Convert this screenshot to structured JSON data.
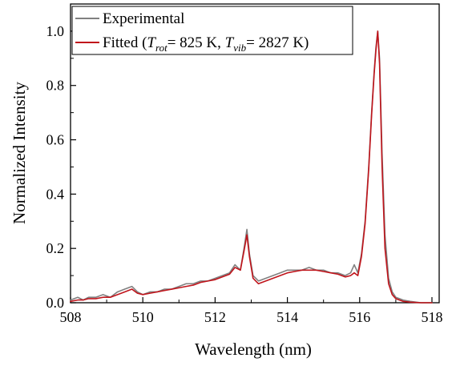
{
  "chart_data": {
    "type": "line",
    "xlabel": "Wavelength (nm)",
    "ylabel": "Normalized Intensity",
    "xlim": [
      508,
      518.2
    ],
    "ylim": [
      0,
      1.1
    ],
    "x_ticks": [
      "508",
      "510",
      "512",
      "514",
      "516",
      "518"
    ],
    "y_ticks": [
      "0.0",
      "0.2",
      "0.4",
      "0.6",
      "0.8",
      "1.0"
    ],
    "legend_position": "top-left",
    "grid": false,
    "legend": {
      "experimental": "Experimental",
      "fitted_prefix": "Fitted (",
      "T_symbol": "T",
      "rot_sub": "rot",
      "rot_value": "= 825 K, ",
      "vib_sub": "vib",
      "vib_value": "= 2827 K)"
    },
    "series": [
      {
        "name": "Experimental",
        "color": "#808080",
        "x": [
          508.0,
          508.2,
          508.35,
          508.5,
          508.7,
          508.9,
          509.1,
          509.3,
          509.5,
          509.7,
          509.85,
          510.0,
          510.2,
          510.4,
          510.6,
          510.8,
          511.0,
          511.2,
          511.4,
          511.6,
          511.8,
          512.0,
          512.2,
          512.4,
          512.55,
          512.7,
          512.8,
          512.88,
          512.95,
          513.05,
          513.2,
          513.4,
          513.6,
          513.8,
          514.0,
          514.2,
          514.4,
          514.6,
          514.8,
          515.0,
          515.2,
          515.4,
          515.6,
          515.75,
          515.85,
          515.95,
          516.05,
          516.15,
          516.25,
          516.33,
          516.4,
          516.45,
          516.5,
          516.55,
          516.62,
          516.7,
          516.8,
          516.9,
          517.0,
          517.1,
          517.2,
          517.4,
          517.7,
          518.0
        ],
        "values": [
          0.01,
          0.02,
          0.01,
          0.02,
          0.02,
          0.03,
          0.02,
          0.04,
          0.05,
          0.06,
          0.04,
          0.03,
          0.04,
          0.04,
          0.05,
          0.05,
          0.06,
          0.07,
          0.07,
          0.08,
          0.08,
          0.09,
          0.1,
          0.11,
          0.14,
          0.12,
          0.2,
          0.27,
          0.18,
          0.1,
          0.08,
          0.09,
          0.1,
          0.11,
          0.12,
          0.12,
          0.12,
          0.13,
          0.12,
          0.12,
          0.11,
          0.11,
          0.1,
          0.11,
          0.14,
          0.11,
          0.18,
          0.3,
          0.5,
          0.7,
          0.85,
          0.94,
          1.0,
          0.9,
          0.55,
          0.25,
          0.09,
          0.04,
          0.02,
          0.015,
          0.01,
          0.005,
          0.0,
          0.0
        ]
      },
      {
        "name": "Fitted",
        "color": "#c0141b",
        "x": [
          508.0,
          508.2,
          508.35,
          508.5,
          508.7,
          508.9,
          509.1,
          509.3,
          509.5,
          509.7,
          509.85,
          510.0,
          510.2,
          510.4,
          510.6,
          510.8,
          511.0,
          511.2,
          511.4,
          511.6,
          511.8,
          512.0,
          512.2,
          512.4,
          512.55,
          512.7,
          512.8,
          512.88,
          512.95,
          513.05,
          513.2,
          513.4,
          513.6,
          513.8,
          514.0,
          514.2,
          514.4,
          514.6,
          514.8,
          515.0,
          515.2,
          515.4,
          515.6,
          515.75,
          515.85,
          515.95,
          516.05,
          516.15,
          516.25,
          516.33,
          516.4,
          516.45,
          516.5,
          516.55,
          516.62,
          516.7,
          516.8,
          516.9,
          517.0,
          517.1,
          517.2,
          517.4,
          517.7,
          518.0
        ],
        "values": [
          0.005,
          0.01,
          0.01,
          0.015,
          0.015,
          0.02,
          0.02,
          0.03,
          0.04,
          0.05,
          0.035,
          0.03,
          0.035,
          0.04,
          0.045,
          0.05,
          0.055,
          0.06,
          0.065,
          0.075,
          0.08,
          0.085,
          0.095,
          0.105,
          0.13,
          0.12,
          0.19,
          0.25,
          0.17,
          0.09,
          0.07,
          0.08,
          0.09,
          0.1,
          0.11,
          0.115,
          0.12,
          0.12,
          0.12,
          0.115,
          0.11,
          0.105,
          0.095,
          0.1,
          0.11,
          0.1,
          0.17,
          0.29,
          0.49,
          0.69,
          0.84,
          0.93,
          1.0,
          0.88,
          0.5,
          0.2,
          0.07,
          0.03,
          0.015,
          0.01,
          0.005,
          0.002,
          0.0,
          0.0
        ]
      }
    ]
  }
}
